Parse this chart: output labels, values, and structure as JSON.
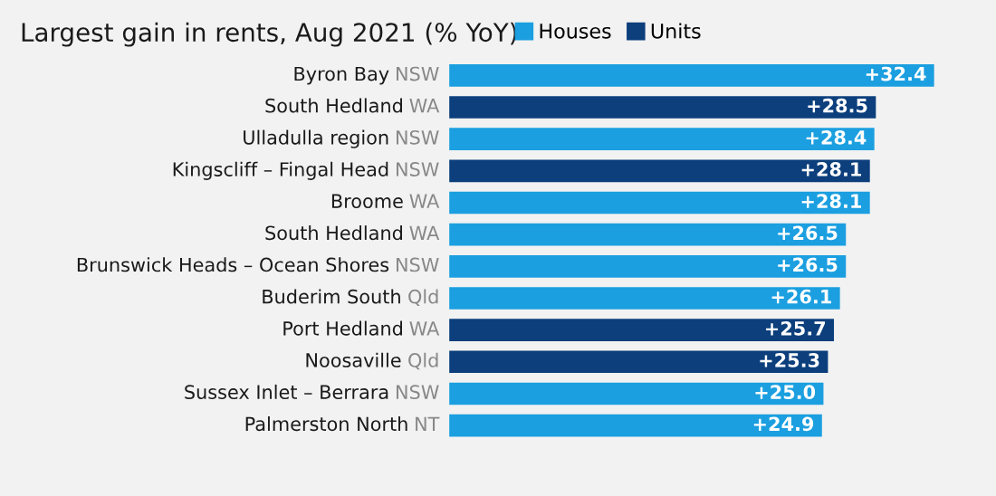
{
  "chart_data": {
    "type": "bar",
    "orientation": "horizontal",
    "title": "Largest gain in rents, Aug 2021 (% YoY)",
    "legend": "top",
    "categories": [
      "Byron Bay NSW",
      "South Hedland WA",
      "Ulladulla region NSW",
      "Kingscliff – Fingal Head NSW",
      "Broome WA",
      "South Hedland WA",
      "Brunswick Heads – Ocean Shores NSW",
      "Buderim South Qld",
      "Port Hedland WA",
      "Noosaville Qld",
      "Sussex Inlet – Berrara NSW",
      "Palmerston North NT"
    ],
    "series": [
      {
        "name": "Houses",
        "color": "#1b9fe0",
        "values": [
          32.4,
          null,
          28.4,
          null,
          28.1,
          26.5,
          26.5,
          26.1,
          null,
          null,
          25.0,
          24.9
        ],
        "value_labels": [
          "+32.4",
          null,
          "+28.4",
          null,
          "+28.1",
          "+26.5",
          "+26.5",
          "+26.1",
          null,
          null,
          "+25.0",
          "+24.9"
        ]
      },
      {
        "name": "Units",
        "color": "#0c3f7c",
        "values": [
          null,
          28.5,
          null,
          28.1,
          null,
          null,
          null,
          null,
          25.7,
          25.3,
          null,
          null
        ],
        "value_labels": [
          null,
          "+28.5",
          null,
          "+28.1",
          null,
          null,
          null,
          null,
          "+25.7",
          "+25.3",
          null,
          null
        ]
      }
    ]
  }
}
